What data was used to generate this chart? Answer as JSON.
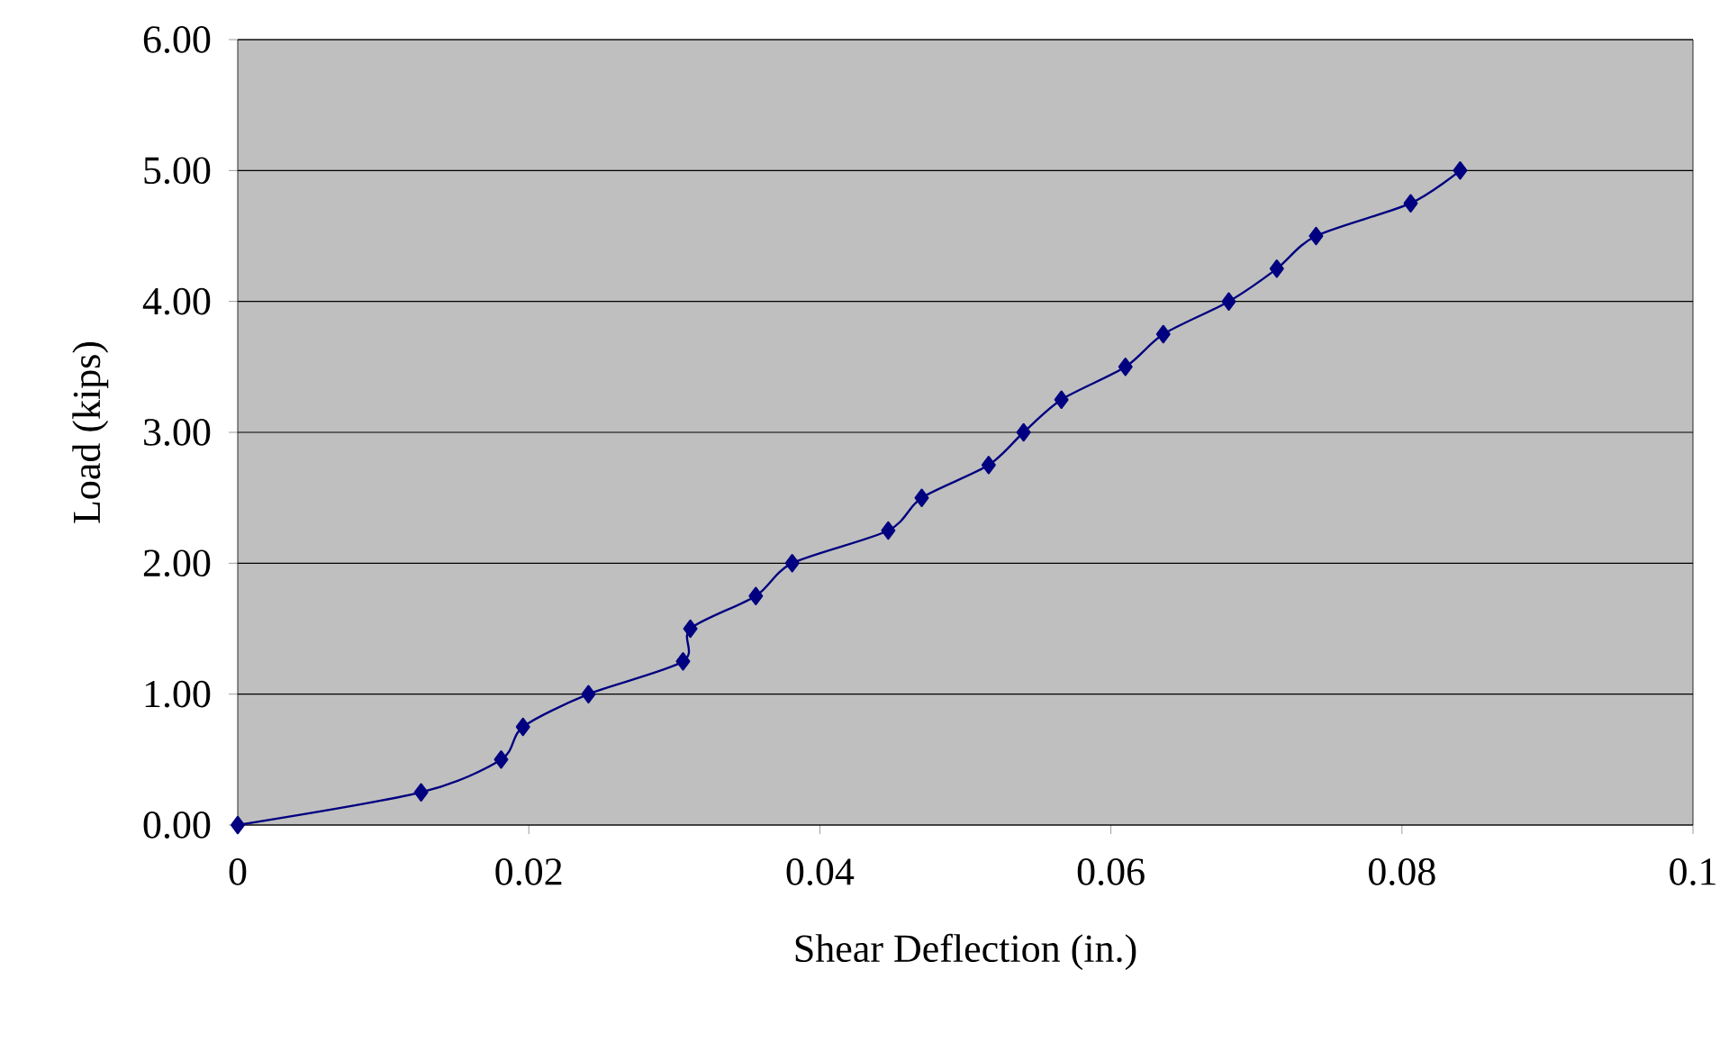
{
  "chart_data": {
    "type": "line",
    "xlabel": "Shear Deflection (in.)",
    "ylabel": "Load (kips)",
    "x": [
      0,
      0.0126,
      0.0181,
      0.0196,
      0.0241,
      0.0306,
      0.0311,
      0.0356,
      0.0381,
      0.0447,
      0.047,
      0.0516,
      0.054,
      0.0566,
      0.061,
      0.0636,
      0.0681,
      0.0714,
      0.0741,
      0.0806,
      0.084
    ],
    "series": [
      {
        "color": "#000080",
        "values": [
          0,
          0.25,
          0.5,
          0.75,
          1.0,
          1.25,
          1.5,
          1.75,
          2.0,
          2.25,
          2.5,
          2.75,
          3.0,
          3.25,
          3.5,
          3.75,
          4.0,
          4.25,
          4.5,
          4.75,
          5.0
        ]
      }
    ],
    "xlim": [
      0,
      0.1
    ],
    "xticks": [
      0,
      0.02,
      0.04,
      0.06,
      0.08,
      0.1
    ],
    "ylim": [
      0,
      6
    ],
    "yticks": [
      {
        "value": 0,
        "label": "0.00"
      },
      {
        "value": 1,
        "label": "1.00"
      },
      {
        "value": 2,
        "label": "2.00"
      },
      {
        "value": 3,
        "label": "3.00"
      },
      {
        "value": 4,
        "label": "4.00"
      },
      {
        "value": 5,
        "label": "5.00"
      },
      {
        "value": 6,
        "label": "6.00"
      }
    ],
    "grid": "y",
    "marker": "diamond",
    "line_style": "solid"
  }
}
